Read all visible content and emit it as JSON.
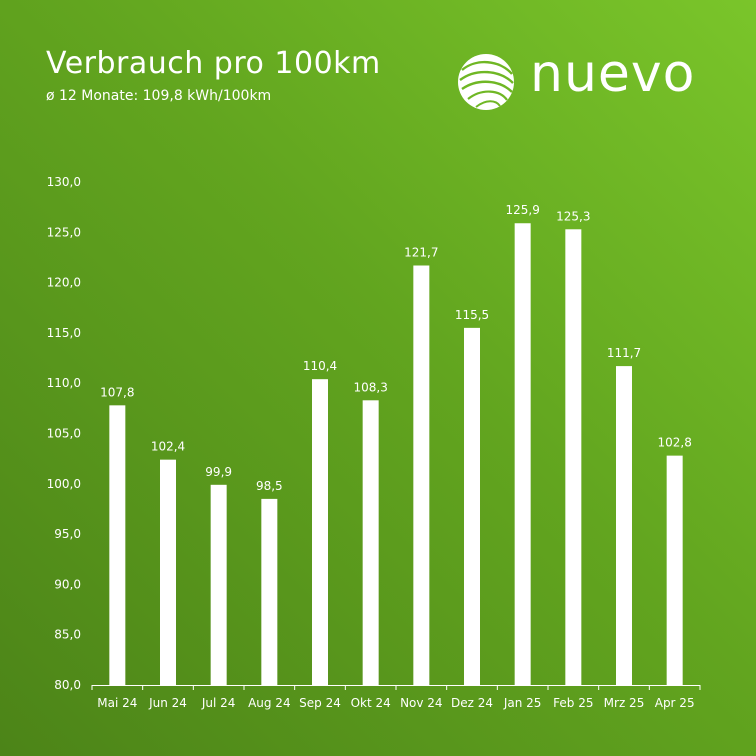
{
  "header": {
    "title": "Verbrauch pro 100km",
    "subtitle": "ø 12 Monate: 109,8 kWh/100km"
  },
  "logo": {
    "text": "nuevo",
    "icon": "globe-icon"
  },
  "colors": {
    "bar": "#ffffff",
    "background_light": "#7ac52a",
    "background_dark": "#4c8418"
  },
  "chart_data": {
    "type": "bar",
    "title": "Verbrauch pro 100km",
    "subtitle": "ø 12 Monate: 109,8 kWh/100km",
    "xlabel": "",
    "ylabel": "",
    "ylim": [
      80,
      130
    ],
    "yticks": [
      80,
      85,
      90,
      95,
      100,
      105,
      110,
      115,
      120,
      125,
      130
    ],
    "ytick_labels": [
      "80,0",
      "85,0",
      "90,0",
      "95,0",
      "100,0",
      "105,0",
      "110,0",
      "115,0",
      "120,0",
      "125,0",
      "130,0"
    ],
    "categories": [
      "Mai 24",
      "Jun 24",
      "Jul 24",
      "Aug 24",
      "Sep 24",
      "Okt 24",
      "Nov 24",
      "Dez 24",
      "Jan 25",
      "Feb 25",
      "Mrz 25",
      "Apr 25"
    ],
    "values": [
      107.8,
      102.4,
      99.9,
      98.5,
      110.4,
      108.3,
      121.7,
      115.5,
      125.9,
      125.3,
      111.7,
      102.8
    ],
    "value_labels": [
      "107,8",
      "102,4",
      "99,9",
      "98,5",
      "110,4",
      "108,3",
      "121,7",
      "115,5",
      "125,9",
      "125,3",
      "111,7",
      "102,8"
    ],
    "grid": false,
    "legend": "none"
  }
}
